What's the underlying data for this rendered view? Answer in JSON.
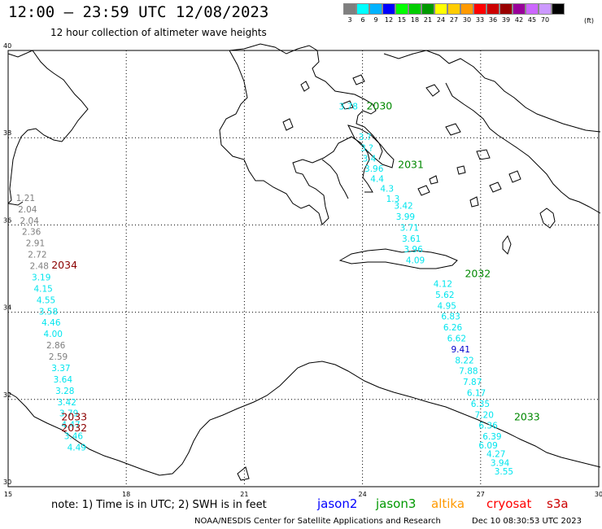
{
  "header": {
    "title": "12:00 – 23:59 UTC 12/08/2023",
    "subtitle": "12 hour collection of altimeter wave heights"
  },
  "legend": {
    "swatches": [
      {
        "color": "#7f7f7f",
        "label": "3"
      },
      {
        "color": "#00ffff",
        "label": "6"
      },
      {
        "color": "#00b2ff",
        "label": "9"
      },
      {
        "color": "#0000ff",
        "label": "12"
      },
      {
        "color": "#00ff00",
        "label": "15"
      },
      {
        "color": "#00cc00",
        "label": "18"
      },
      {
        "color": "#009900",
        "label": "21"
      },
      {
        "color": "#ffff00",
        "label": "24"
      },
      {
        "color": "#ffcc00",
        "label": "27"
      },
      {
        "color": "#ff9900",
        "label": "30"
      },
      {
        "color": "#ff0000",
        "label": "33"
      },
      {
        "color": "#cc0000",
        "label": "36"
      },
      {
        "color": "#990000",
        "label": "39"
      },
      {
        "color": "#990099",
        "label": "42"
      },
      {
        "color": "#cc66ff",
        "label": "45"
      },
      {
        "color": "#cc99ff",
        "label": "70"
      },
      {
        "color": "#000000",
        "label": ""
      }
    ],
    "unit": "(ft)"
  },
  "axes": {
    "x_ticks": [
      "15",
      "18",
      "21",
      "24",
      "27",
      "30"
    ],
    "y_ticks": [
      "40",
      "38",
      "36",
      "34",
      "32",
      "30"
    ]
  },
  "colors": {
    "gray": "#7f7f7f",
    "cyan": "#00e5ee",
    "green": "#008800",
    "darkred": "#8b0000",
    "blue": "#0000cc"
  },
  "passes": [
    {
      "id": "2030",
      "color": "green",
      "lon": 24.1,
      "lat": 38.65
    },
    {
      "id": "2031",
      "color": "green",
      "lon": 24.9,
      "lat": 37.3
    },
    {
      "id": "2034",
      "color": "darkred",
      "lon": 16.1,
      "lat": 35.0
    },
    {
      "id": "2032",
      "color": "green",
      "lon": 26.6,
      "lat": 34.8
    },
    {
      "id": "2033",
      "color": "green",
      "lon": 27.85,
      "lat": 31.52
    },
    {
      "id": "2033",
      "color": "darkred",
      "lon": 16.35,
      "lat": 31.52
    },
    {
      "id": "2032",
      "color": "darkred",
      "lon": 16.35,
      "lat": 31.27
    }
  ],
  "wave_values": [
    {
      "v": "1.21",
      "c": "gray",
      "lon": 15.2,
      "lat": 36.55
    },
    {
      "v": "2.04",
      "c": "gray",
      "lon": 15.25,
      "lat": 36.29
    },
    {
      "v": "2.04",
      "c": "gray",
      "lon": 15.3,
      "lat": 36.03
    },
    {
      "v": "2.36",
      "c": "gray",
      "lon": 15.35,
      "lat": 35.77
    },
    {
      "v": "2.91",
      "c": "gray",
      "lon": 15.45,
      "lat": 35.51
    },
    {
      "v": "2.72",
      "c": "gray",
      "lon": 15.5,
      "lat": 35.25
    },
    {
      "v": "2.48",
      "c": "gray",
      "lon": 15.55,
      "lat": 34.99
    },
    {
      "v": "3.19",
      "c": "cyan",
      "lon": 15.6,
      "lat": 34.73
    },
    {
      "v": "4.15",
      "c": "cyan",
      "lon": 15.65,
      "lat": 34.47
    },
    {
      "v": "4.55",
      "c": "cyan",
      "lon": 15.72,
      "lat": 34.21
    },
    {
      "v": "3.58",
      "c": "cyan",
      "lon": 15.78,
      "lat": 33.95
    },
    {
      "v": "4.46",
      "c": "cyan",
      "lon": 15.85,
      "lat": 33.69
    },
    {
      "v": "4.00",
      "c": "cyan",
      "lon": 15.9,
      "lat": 33.43
    },
    {
      "v": "2.86",
      "c": "gray",
      "lon": 15.97,
      "lat": 33.17
    },
    {
      "v": "2.59",
      "c": "gray",
      "lon": 16.03,
      "lat": 32.91
    },
    {
      "v": "3.37",
      "c": "cyan",
      "lon": 16.1,
      "lat": 32.65
    },
    {
      "v": "3.64",
      "c": "cyan",
      "lon": 16.15,
      "lat": 32.39
    },
    {
      "v": "3.28",
      "c": "cyan",
      "lon": 16.2,
      "lat": 32.13
    },
    {
      "v": "3.42",
      "c": "cyan",
      "lon": 16.25,
      "lat": 31.87
    },
    {
      "v": "3.79",
      "c": "cyan",
      "lon": 16.3,
      "lat": 31.61
    },
    {
      "v": "4.47",
      "c": "cyan",
      "lon": 16.35,
      "lat": 31.35
    },
    {
      "v": "3.46",
      "c": "cyan",
      "lon": 16.42,
      "lat": 31.09
    },
    {
      "v": "4.49",
      "c": "cyan",
      "lon": 16.5,
      "lat": 30.83
    },
    {
      "v": "3.78",
      "c": "cyan",
      "lon": 23.4,
      "lat": 38.65
    },
    {
      "v": "3.?",
      "c": "cyan",
      "lon": 23.9,
      "lat": 37.95
    },
    {
      "v": "3.?",
      "c": "cyan",
      "lon": 23.95,
      "lat": 37.7
    },
    {
      "v": "3.4",
      "c": "cyan",
      "lon": 24.0,
      "lat": 37.45
    },
    {
      "v": "3.96",
      "c": "cyan",
      "lon": 24.05,
      "lat": 37.22
    },
    {
      "v": "4.4",
      "c": "cyan",
      "lon": 24.2,
      "lat": 36.99
    },
    {
      "v": "4.3",
      "c": "cyan",
      "lon": 24.45,
      "lat": 36.76
    },
    {
      "v": "1.3",
      "c": "cyan",
      "lon": 24.6,
      "lat": 36.53
    },
    {
      "v": "3.42",
      "c": "cyan",
      "lon": 24.8,
      "lat": 36.37
    },
    {
      "v": "3.99",
      "c": "cyan",
      "lon": 24.85,
      "lat": 36.12
    },
    {
      "v": "3.71",
      "c": "cyan",
      "lon": 24.95,
      "lat": 35.87
    },
    {
      "v": "3.61",
      "c": "cyan",
      "lon": 25.0,
      "lat": 35.62
    },
    {
      "v": "3.96",
      "c": "cyan",
      "lon": 25.05,
      "lat": 35.37
    },
    {
      "v": "4.09",
      "c": "cyan",
      "lon": 25.1,
      "lat": 35.12
    },
    {
      "v": "4.12",
      "c": "cyan",
      "lon": 25.8,
      "lat": 34.58
    },
    {
      "v": "5.62",
      "c": "cyan",
      "lon": 25.85,
      "lat": 34.33
    },
    {
      "v": "4.95",
      "c": "cyan",
      "lon": 25.9,
      "lat": 34.08
    },
    {
      "v": "6.83",
      "c": "cyan",
      "lon": 26.0,
      "lat": 33.83
    },
    {
      "v": "6.26",
      "c": "cyan",
      "lon": 26.05,
      "lat": 33.58
    },
    {
      "v": "6.62",
      "c": "cyan",
      "lon": 26.15,
      "lat": 33.33
    },
    {
      "v": "9.41",
      "c": "blue",
      "lon": 26.25,
      "lat": 33.08
    },
    {
      "v": "8.22",
      "c": "cyan",
      "lon": 26.35,
      "lat": 32.83
    },
    {
      "v": "7.88",
      "c": "cyan",
      "lon": 26.45,
      "lat": 32.58
    },
    {
      "v": "7.87",
      "c": "cyan",
      "lon": 26.55,
      "lat": 32.33
    },
    {
      "v": "6.17",
      "c": "cyan",
      "lon": 26.65,
      "lat": 32.08
    },
    {
      "v": "6.35",
      "c": "cyan",
      "lon": 26.75,
      "lat": 31.83
    },
    {
      "v": "7.20",
      "c": "cyan",
      "lon": 26.85,
      "lat": 31.58
    },
    {
      "v": "6.36",
      "c": "cyan",
      "lon": 26.95,
      "lat": 31.33
    },
    {
      "v": "6.39",
      "c": "cyan",
      "lon": 27.05,
      "lat": 31.08
    },
    {
      "v": "6.09",
      "c": "cyan",
      "lon": 26.95,
      "lat": 30.88
    },
    {
      "v": "4.27",
      "c": "cyan",
      "lon": 27.15,
      "lat": 30.68
    },
    {
      "v": "3.94",
      "c": "cyan",
      "lon": 27.25,
      "lat": 30.48
    },
    {
      "v": "3.55",
      "c": "cyan",
      "lon": 27.35,
      "lat": 30.28
    }
  ],
  "footer": {
    "note": "note: 1) Time is in UTC; 2) SWH is in feet",
    "satellites": [
      {
        "name": "jason2",
        "color": "#0000ff"
      },
      {
        "name": "jason3",
        "color": "#009900"
      },
      {
        "name": "altika",
        "color": "#ff9900"
      },
      {
        "name": "cryosat",
        "color": "#ff0000"
      },
      {
        "name": "s3a",
        "color": "#cc0000"
      }
    ],
    "credit": "NOAA/NESDIS Center for Satellite Applications and Research",
    "timestamp": "Dec 10 08:30:53 UTC 2023"
  }
}
